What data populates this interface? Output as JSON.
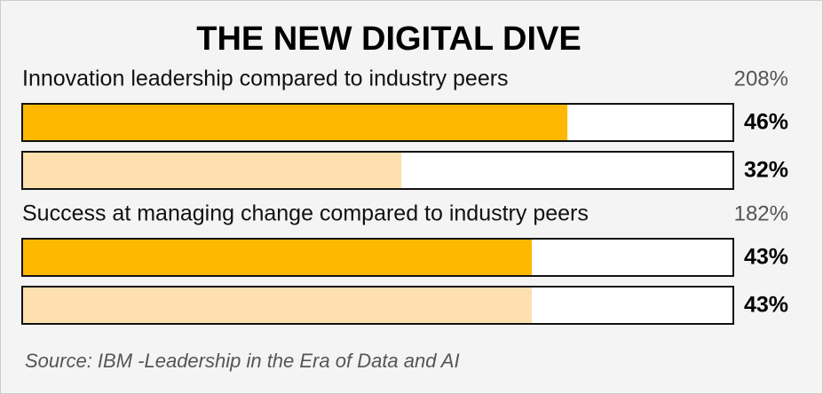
{
  "chart_data": {
    "type": "bar",
    "orientation": "horizontal",
    "title": "THE NEW DIGITAL DIVE",
    "categories": [
      "Innovation leadership compared to industry peers",
      "Success at managing change compared to industry peers"
    ],
    "annotations": [
      "208%",
      "182%"
    ],
    "series": [
      {
        "color": "#ffb800",
        "values": [
          46,
          43
        ],
        "value_labels": [
          "46%",
          "43%"
        ]
      },
      {
        "color": "#fde0ad",
        "values": [
          32,
          43
        ],
        "value_labels": [
          "32%",
          "43%"
        ]
      }
    ],
    "xlim": [
      0,
      60
    ],
    "source": "Source: IBM -Leadership in the Era of Data and AI"
  }
}
